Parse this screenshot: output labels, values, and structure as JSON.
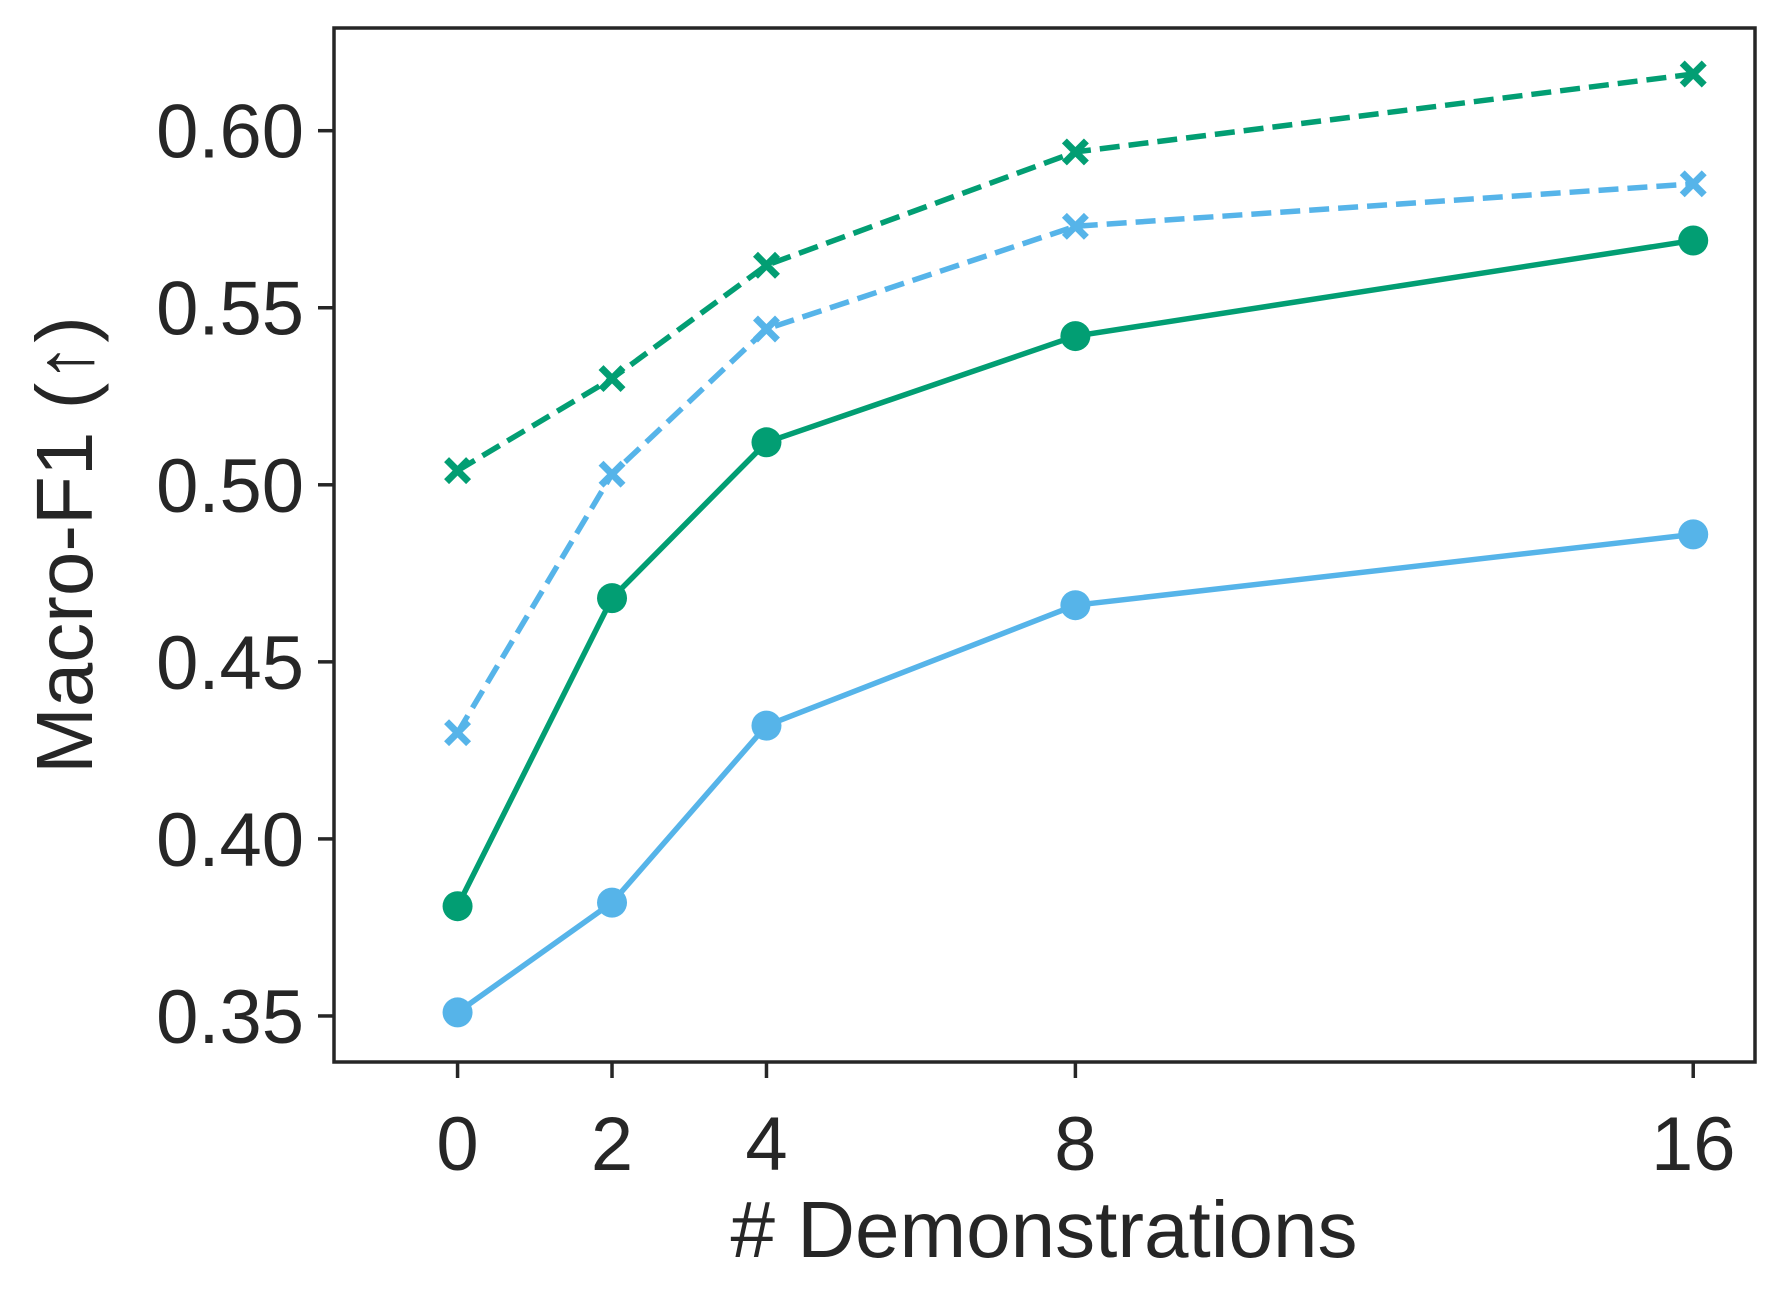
{
  "chart_data": {
    "type": "line",
    "xlabel": "# Demonstrations",
    "ylabel": "Macro-F1 (↑)",
    "x": [
      0,
      2,
      4,
      8,
      16
    ],
    "x_ticks": [
      "0",
      "2",
      "4",
      "8",
      "16"
    ],
    "y_ticks": [
      "0.35",
      "0.40",
      "0.45",
      "0.50",
      "0.55",
      "0.60"
    ],
    "xlim": [
      -1.6,
      16.8
    ],
    "ylim": [
      0.337,
      0.629
    ],
    "grid": false,
    "legend": "none",
    "series": [
      {
        "values": [
          0.504,
          0.53,
          0.562,
          0.594,
          0.616
        ],
        "color": "#029e73",
        "linestyle": "dashed",
        "marker": "x"
      },
      {
        "values": [
          0.43,
          0.503,
          0.544,
          0.573,
          0.585
        ],
        "color": "#56b4e9",
        "linestyle": "dashed",
        "marker": "x"
      },
      {
        "values": [
          0.381,
          0.468,
          0.512,
          0.542,
          0.569
        ],
        "color": "#029e73",
        "linestyle": "solid",
        "marker": "circle"
      },
      {
        "values": [
          0.351,
          0.382,
          0.432,
          0.466,
          0.486
        ],
        "color": "#56b4e9",
        "linestyle": "solid",
        "marker": "circle"
      }
    ]
  }
}
